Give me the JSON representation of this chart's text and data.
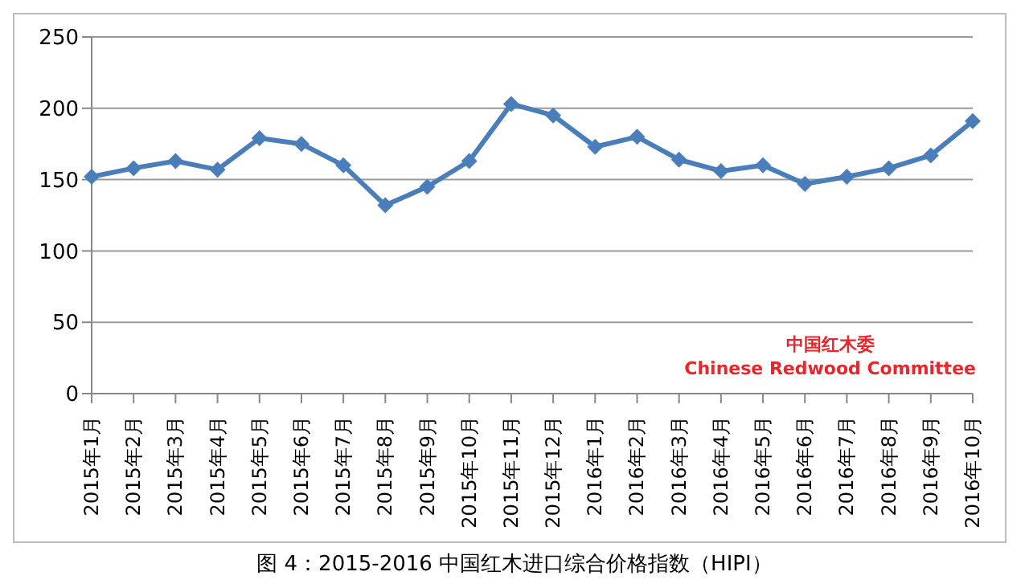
{
  "chart_data": {
    "type": "line",
    "title": "图 4：2015-2016 中国红木进口综合价格指数（HIPI）",
    "categories": [
      "2015年1月",
      "2015年2月",
      "2015年3月",
      "2015年4月",
      "2015年5月",
      "2015年6月",
      "2015年7月",
      "2015年8月",
      "2015年9月",
      "2015年10月",
      "2015年11月",
      "2015年12月",
      "2016年1月",
      "2016年2月",
      "2016年3月",
      "2016年4月",
      "2016年5月",
      "2016年6月",
      "2016年7月",
      "2016年8月",
      "2016年9月",
      "2016年10月"
    ],
    "series": [
      {
        "color": "#4a7ebb",
        "values": [
          152,
          158,
          163,
          157,
          179,
          175,
          160,
          132,
          145,
          163,
          203,
          195,
          173,
          180,
          164,
          156,
          160,
          147,
          152,
          158,
          167,
          191
        ]
      }
    ],
    "ylim": [
      0,
      250
    ],
    "yticks": [
      0,
      50,
      100,
      150,
      200,
      250
    ],
    "grid": "y",
    "marker": "diamond",
    "line_style": "solid",
    "legend": false,
    "annotations": [
      "中国红木委",
      "Chinese Redwood Committee"
    ]
  }
}
